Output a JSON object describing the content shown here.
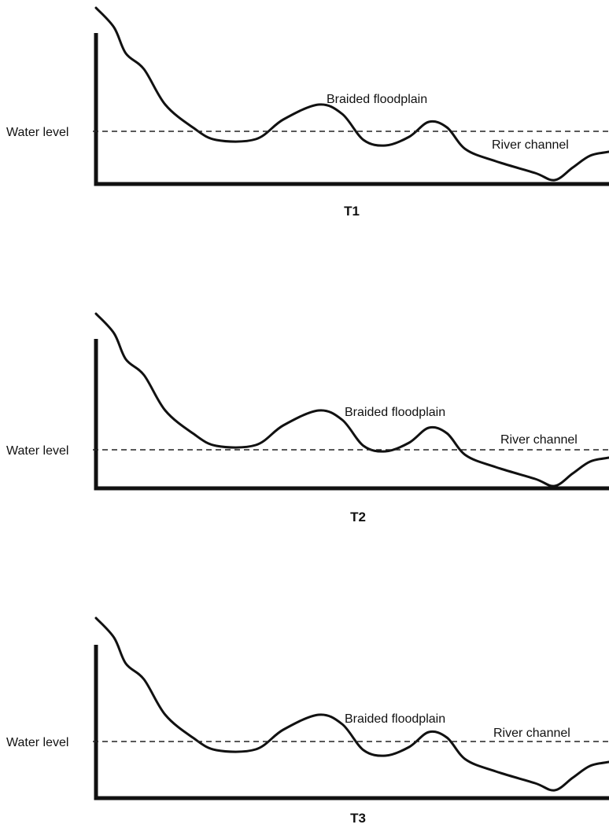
{
  "panels": [
    {
      "title": "T1",
      "water_level": "Water level",
      "floodplain": "Braided floodplain",
      "channel": "River channel"
    },
    {
      "title": "T2",
      "water_level": "Water level",
      "floodplain": "Braided floodplain",
      "channel": "River channel"
    },
    {
      "title": "T3",
      "water_level": "Water level",
      "floodplain": "Braided floodplain",
      "channel": "River channel"
    }
  ]
}
